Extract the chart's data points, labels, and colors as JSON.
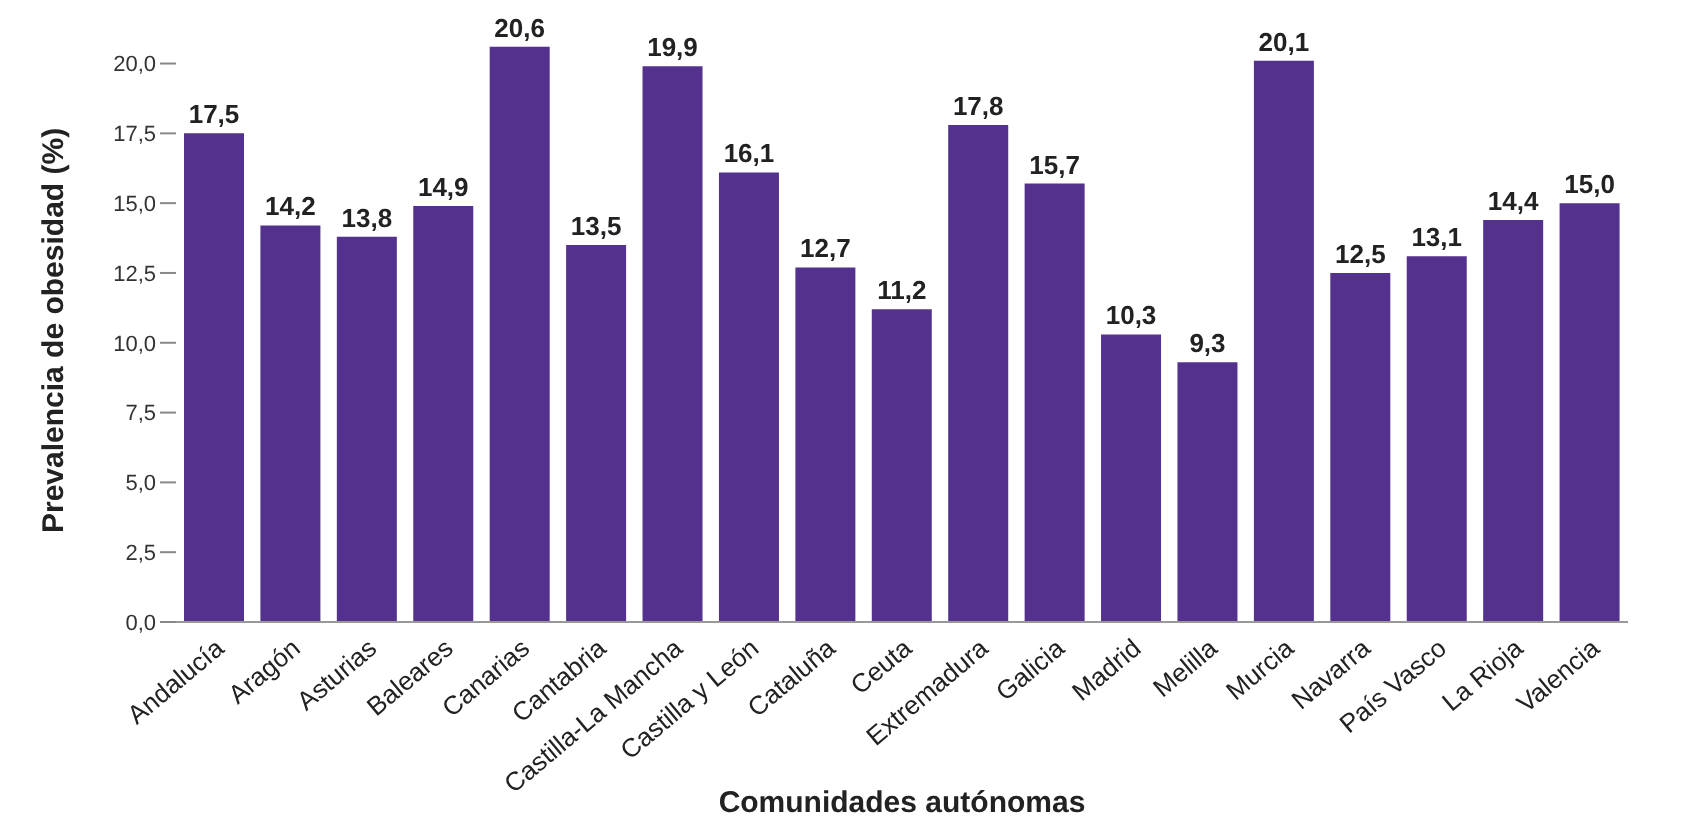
{
  "chart_data": {
    "type": "bar",
    "xlabel": "Comunidades autónomas",
    "ylabel": "Prevalencia de obesidad (%)",
    "categories": [
      "Andalucía",
      "Aragón",
      "Asturias",
      "Baleares",
      "Canarias",
      "Cantabria",
      "Castilla-La Mancha",
      "Castilla y León",
      "Cataluña",
      "Ceuta",
      "Extremadura",
      "Galicia",
      "Madrid",
      "Melilla",
      "Murcia",
      "Navarra",
      "País Vasco",
      "La Rioja",
      "Valencia"
    ],
    "values": [
      17.5,
      14.2,
      13.8,
      14.9,
      20.6,
      13.5,
      19.9,
      16.1,
      12.7,
      11.2,
      17.8,
      15.7,
      10.3,
      9.3,
      20.1,
      12.5,
      13.1,
      14.4,
      15.0
    ],
    "value_labels": [
      "17,5",
      "14,2",
      "13,8",
      "14,9",
      "20,6",
      "13,5",
      "19,9",
      "16,1",
      "12,7",
      "11,2",
      "17,8",
      "15,7",
      "10,3",
      "9,3",
      "20,1",
      "12,5",
      "13,1",
      "14,4",
      "15,0"
    ],
    "color": "#54318c",
    "ylim": [
      0,
      20.7
    ],
    "yticks": [
      {
        "value": 0,
        "label": "0,0"
      },
      {
        "value": 2.5,
        "label": "2,5"
      },
      {
        "value": 5,
        "label": "5,0"
      },
      {
        "value": 7.5,
        "label": "7,5"
      },
      {
        "value": 10,
        "label": "10,0"
      },
      {
        "value": 12.5,
        "label": "12,5"
      },
      {
        "value": 15,
        "label": "15,0"
      },
      {
        "value": 17.5,
        "label": "17,5"
      },
      {
        "value": 20,
        "label": "20,0"
      }
    ],
    "grid": false,
    "legend": false
  }
}
